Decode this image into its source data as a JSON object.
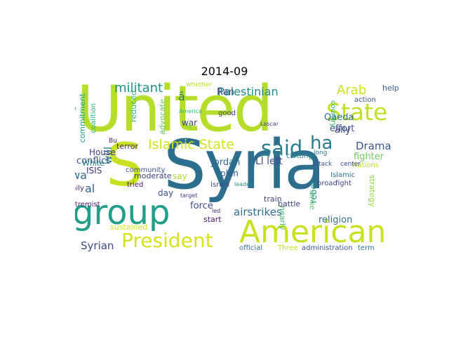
{
  "title": "2014-09",
  "palette": [
    "#b5de2b",
    "#d9e33a",
    "#1f9e89",
    "#35b779",
    "#26828e",
    "#31688e",
    "#3e4989",
    "#482878",
    "#440154",
    "#6ece58",
    "#90d743",
    "#fde725"
  ],
  "words": [
    {
      "t": "Syria",
      "c": "#2c6e8e"
    },
    {
      "t": "United",
      "c": "#b5de2b"
    },
    {
      "t": "S",
      "c": "#c8e020"
    },
    {
      "t": "group",
      "c": "#1f9e89"
    },
    {
      "t": "American",
      "c": "#c8e020"
    },
    {
      "t": "State",
      "c": "#c0df25"
    },
    {
      "t": "said",
      "c": "#2a7b8e"
    },
    {
      "t": "President",
      "c": "#d8e219"
    },
    {
      "t": "Islamic State",
      "c": "#d0e11c"
    },
    {
      "t": "militant",
      "c": "#1f948c"
    },
    {
      "t": "Palestinian",
      "c": "#228c8d"
    },
    {
      "t": "Arab",
      "c": "#cde11d"
    },
    {
      "t": "ha",
      "c": "#2a788e"
    },
    {
      "t": "Drama",
      "c": "#39568c"
    },
    {
      "t": "Syrian",
      "c": "#3e4989"
    },
    {
      "t": "airstrikes",
      "c": "#2d708e"
    },
    {
      "t": "wa",
      "c": "#2f6c8e"
    },
    {
      "t": "al",
      "c": "#33638d"
    },
    {
      "t": "will",
      "c": "#287d8e"
    },
    {
      "t": "conflict",
      "c": "#3b528b"
    },
    {
      "t": "ISIS",
      "c": "#46327e"
    },
    {
      "t": "Jordan",
      "c": "#31688e"
    },
    {
      "t": "Qaeda",
      "c": "#2c728e"
    },
    {
      "t": "effort",
      "c": "#39568c"
    },
    {
      "t": "fighter",
      "c": "#6ece58"
    },
    {
      "t": "force",
      "c": "#3e4a89"
    },
    {
      "t": "religion",
      "c": "#2e6f8e"
    },
    {
      "t": "strategy",
      "c": "#94d840"
    },
    {
      "t": "rebel",
      "c": "#21918c"
    },
    {
      "t": "ally",
      "c": "#3f4889"
    },
    {
      "t": "Ran",
      "c": "#404688"
    },
    {
      "t": "war",
      "c": "#443983"
    },
    {
      "t": "reduced",
      "c": "#35b779"
    },
    {
      "t": "advocate",
      "c": "#5ec962"
    },
    {
      "t": "commitment",
      "c": "#1fa088"
    },
    {
      "t": "refugee",
      "c": "#228b8d"
    },
    {
      "t": "coalition",
      "c": "#2ab07f"
    },
    {
      "t": "House",
      "c": "#433d84"
    },
    {
      "t": "White",
      "c": "#25838e"
    },
    {
      "t": "family",
      "c": "#482475"
    },
    {
      "t": "terror",
      "c": "#472c7a"
    },
    {
      "t": "Ll left",
      "c": "#3d4e8a"
    },
    {
      "t": "plan",
      "c": "#365c8d"
    },
    {
      "t": "say",
      "c": "#addc30"
    },
    {
      "t": "day",
      "c": "#3a548c"
    },
    {
      "t": "tried",
      "c": "#471365"
    },
    {
      "t": "extremist",
      "c": "#481c6e"
    },
    {
      "t": "moderate",
      "c": "#414487"
    },
    {
      "t": "sustained",
      "c": "#d8e219"
    },
    {
      "t": "nearly",
      "c": "#3fbc73"
    },
    {
      "t": "train",
      "c": "#404588"
    },
    {
      "t": "battle",
      "c": "#414487"
    },
    {
      "t": "start",
      "c": "#482173"
    },
    {
      "t": "official",
      "c": "#2c728e"
    },
    {
      "t": "Three",
      "c": "#bade28"
    },
    {
      "t": "administration",
      "c": "#39568c"
    },
    {
      "t": "term",
      "c": "#2b748e"
    },
    {
      "t": "help",
      "c": "#34608d"
    },
    {
      "t": "action",
      "c": "#3b518b"
    },
    {
      "t": "Nations",
      "c": "#bddf26"
    },
    {
      "t": "country",
      "c": "#2db27d"
    },
    {
      "t": "Islamic",
      "c": "#2c738e"
    },
    {
      "t": "good",
      "c": "#453581"
    },
    {
      "t": "whether",
      "c": "#b5de2b"
    },
    {
      "t": "fight",
      "c": "#404588"
    },
    {
      "t": "broad",
      "c": "#3f4788"
    },
    {
      "t": "strike",
      "c": "#50c46a"
    },
    {
      "t": "attack",
      "c": "#3b528b"
    },
    {
      "t": "long",
      "c": "#2a788e"
    },
    {
      "t": "center",
      "c": "#3e4989"
    },
    {
      "t": "clotting",
      "c": "#24868e"
    },
    {
      "t": "Lascar",
      "c": "#414487"
    },
    {
      "t": "community",
      "c": "#3b528b"
    },
    {
      "t": "Israel",
      "c": "#3d4e8a"
    },
    {
      "t": "led",
      "c": "#482374"
    },
    {
      "t": "target",
      "c": "#443a83"
    },
    {
      "t": "America",
      "c": "#35b779"
    },
    {
      "t": "Bu",
      "c": "#481f70"
    },
    {
      "t": "leader",
      "c": "#21918c"
    },
    {
      "t": "â",
      "c": "#2c728e"
    },
    {
      "t": "â",
      "c": "#84d44b"
    }
  ]
}
